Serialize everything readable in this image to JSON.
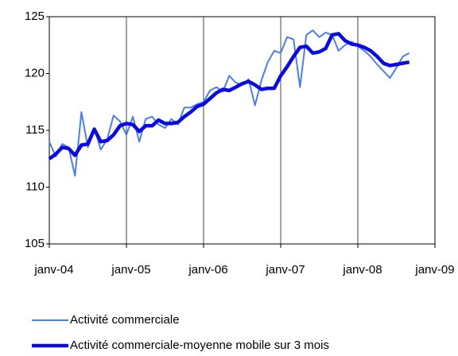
{
  "chart_data": {
    "type": "line",
    "categories": [
      "janv-04",
      null,
      null,
      null,
      null,
      null,
      null,
      null,
      null,
      null,
      null,
      null,
      "janv-05",
      null,
      null,
      null,
      null,
      null,
      null,
      null,
      null,
      null,
      null,
      null,
      "janv-06",
      null,
      null,
      null,
      null,
      null,
      null,
      null,
      null,
      null,
      null,
      null,
      "janv-07",
      null,
      null,
      null,
      null,
      null,
      null,
      null,
      null,
      null,
      null,
      null,
      "janv-08",
      null,
      null,
      null,
      null,
      null,
      null,
      null,
      null,
      null,
      null,
      null,
      "janv-09"
    ],
    "series": [
      {
        "name": "Activité commerciale",
        "color": "#4a7ff0",
        "width": 2,
        "values": [
          114.0,
          112.7,
          113.8,
          113.5,
          111.0,
          116.6,
          113.5,
          115.2,
          113.3,
          114.2,
          116.3,
          115.8,
          114.6,
          116.2,
          114.0,
          116.0,
          116.2,
          115.5,
          115.2,
          116.0,
          115.5,
          117.0,
          117.0,
          117.3,
          117.5,
          118.5,
          118.8,
          118.4,
          119.8,
          119.2,
          119.0,
          119.5,
          117.2,
          119.4,
          121.0,
          122.0,
          121.8,
          123.2,
          123.0,
          118.8,
          123.4,
          123.8,
          123.2,
          123.6,
          123.4,
          122.0,
          122.5,
          122.8,
          122.4,
          122.0,
          121.5,
          120.8,
          120.2,
          119.6,
          120.5,
          121.5,
          121.8,
          null,
          null,
          null,
          null
        ]
      },
      {
        "name": "Activité commerciale-moyenne mobile sur 3 mois",
        "color": "#0a0ae6",
        "width": 4.5,
        "values": [
          112.5,
          112.9,
          113.5,
          113.4,
          112.8,
          113.7,
          113.8,
          115.1,
          114.0,
          114.1,
          114.6,
          115.4,
          115.6,
          115.5,
          114.9,
          115.4,
          115.4,
          115.9,
          115.6,
          115.6,
          115.7,
          116.2,
          116.6,
          117.1,
          117.3,
          117.8,
          118.3,
          118.6,
          118.5,
          118.8,
          119.1,
          119.3,
          119.0,
          118.6,
          118.7,
          118.7,
          119.8,
          120.6,
          121.5,
          122.3,
          122.4,
          121.8,
          121.9,
          122.2,
          123.4,
          123.5,
          122.9,
          122.6,
          122.5,
          122.3,
          122.0,
          121.5,
          120.9,
          120.7,
          120.8,
          120.9,
          121.0,
          null,
          null,
          null,
          null
        ]
      }
    ],
    "ylim": [
      105,
      125
    ],
    "yticks": [
      105,
      110,
      115,
      120,
      125
    ],
    "grid": true,
    "legend": "bottom"
  }
}
